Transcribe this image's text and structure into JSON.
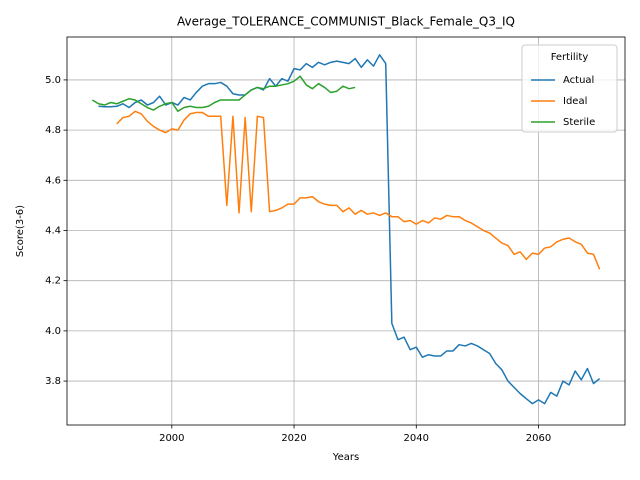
{
  "chart_data": {
    "type": "line",
    "title": "Average_TOLERANCE_COMMUNIST_Black_Female_Q3_IQ",
    "x_label": "Years",
    "y_label": "Score(3-6)",
    "legend_title": "Fertility",
    "legend_loc": "upper right",
    "grid": true,
    "xlim": [
      1982.85,
      2074.15
    ],
    "ylim": [
      3.625,
      5.171
    ],
    "xticks": [
      2000,
      2020,
      2040,
      2060
    ],
    "yticks": [
      3.8,
      {
        "value": 4,
        "label": "4.0"
      },
      4.2,
      4.4,
      4.6,
      4.8,
      {
        "value": 5,
        "label": "5.0"
      }
    ],
    "x": [
      1987,
      1988,
      1989,
      1990,
      1991,
      1992,
      1993,
      1994,
      1995,
      1996,
      1997,
      1998,
      1999,
      2000,
      2001,
      2002,
      2003,
      2004,
      2005,
      2006,
      2007,
      2008,
      2009,
      2010,
      2011,
      2012,
      2013,
      2014,
      2015,
      2016,
      2017,
      2018,
      2019,
      2020,
      2021,
      2022,
      2023,
      2024,
      2025,
      2026,
      2027,
      2028,
      2029,
      2030,
      2031,
      2032,
      2033,
      2034,
      2035,
      2036,
      2037,
      2038,
      2039,
      2040,
      2041,
      2042,
      2043,
      2044,
      2045,
      2046,
      2047,
      2048,
      2049,
      2050,
      2051,
      2052,
      2053,
      2054,
      2055,
      2056,
      2057,
      2058,
      2059,
      2060,
      2061,
      2062,
      2063,
      2064,
      2065,
      2066,
      2067,
      2068,
      2069,
      2070
    ],
    "series": [
      {
        "name": "Actual",
        "color": "#1f77b4",
        "values": [
          null,
          4.895,
          4.893,
          4.893,
          4.895,
          4.905,
          4.89,
          4.91,
          4.92,
          4.9,
          4.91,
          4.935,
          4.9,
          4.91,
          4.9,
          4.93,
          4.92,
          4.95,
          4.975,
          4.985,
          4.985,
          4.99,
          4.975,
          4.945,
          4.94,
          4.94,
          4.96,
          4.97,
          4.96,
          5.005,
          4.975,
          5.005,
          4.995,
          5.045,
          5.04,
          5.065,
          5.05,
          5.07,
          5.06,
          5.07,
          5.075,
          5.07,
          5.065,
          5.085,
          5.05,
          5.08,
          5.055,
          5.1,
          5.065,
          4.03,
          3.965,
          3.975,
          3.925,
          3.935,
          3.895,
          3.905,
          3.9,
          3.9,
          3.92,
          3.92,
          3.945,
          3.94,
          3.95,
          3.94,
          3.925,
          3.91,
          3.87,
          3.845,
          3.8,
          3.775,
          3.75,
          3.73,
          3.71,
          3.725,
          3.71,
          3.755,
          3.74,
          3.8,
          3.785,
          3.84,
          3.805,
          3.85,
          3.79,
          3.81
        ]
      },
      {
        "name": "Ideal",
        "color": "#ff7f0e",
        "values": [
          null,
          null,
          null,
          null,
          4.825,
          4.85,
          4.855,
          4.875,
          4.865,
          4.835,
          4.815,
          4.8,
          4.79,
          4.805,
          4.8,
          4.84,
          4.865,
          4.87,
          4.87,
          4.855,
          4.855,
          4.855,
          4.5,
          4.855,
          4.47,
          4.85,
          4.475,
          4.855,
          4.85,
          4.475,
          4.48,
          4.49,
          4.505,
          4.505,
          4.53,
          4.53,
          4.535,
          4.515,
          4.505,
          4.5,
          4.5,
          4.475,
          4.49,
          4.465,
          4.48,
          4.465,
          4.47,
          4.46,
          4.47,
          4.455,
          4.455,
          4.435,
          4.44,
          4.425,
          4.44,
          4.43,
          4.45,
          4.445,
          4.46,
          4.455,
          4.455,
          4.44,
          4.43,
          4.415,
          4.4,
          4.39,
          4.37,
          4.35,
          4.34,
          4.305,
          4.315,
          4.285,
          4.31,
          4.305,
          4.33,
          4.335,
          4.355,
          4.365,
          4.37,
          4.355,
          4.345,
          4.31,
          4.305,
          4.245
        ]
      },
      {
        "name": "Sterile",
        "color": "#2ca02c",
        "values": [
          4.92,
          4.905,
          4.9,
          4.91,
          4.905,
          4.915,
          4.925,
          4.92,
          4.905,
          4.89,
          4.88,
          4.895,
          4.905,
          4.91,
          4.875,
          4.89,
          4.895,
          4.89,
          4.89,
          4.895,
          4.91,
          4.92,
          4.92,
          4.92,
          4.92,
          4.94,
          4.96,
          4.97,
          4.965,
          4.975,
          4.975,
          4.98,
          4.985,
          4.995,
          5.015,
          4.98,
          4.965,
          4.985,
          4.97,
          4.95,
          4.955,
          4.975,
          4.965,
          4.97,
          null,
          null,
          null,
          null,
          null,
          null,
          null,
          null,
          null,
          null,
          null,
          null,
          null,
          null,
          null,
          null,
          null,
          null,
          null,
          null,
          null,
          null,
          null,
          null,
          null,
          null,
          null,
          null,
          null,
          null,
          null,
          null,
          null,
          null,
          null,
          null,
          null,
          null,
          null,
          null
        ]
      }
    ]
  }
}
